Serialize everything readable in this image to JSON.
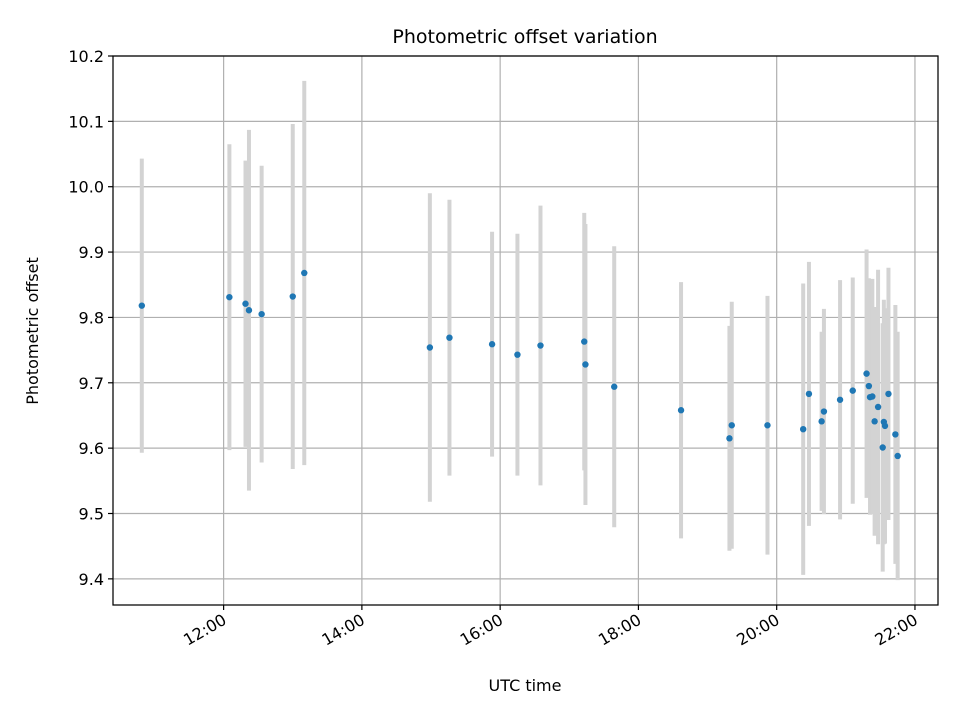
{
  "chart_data": {
    "type": "scatter",
    "title": "Photometric offset variation",
    "xlabel": "UTC time",
    "ylabel": "Photometric offset",
    "x_unit": "hour (decimal UTC)",
    "xlim": [
      "10:24",
      "22:20"
    ],
    "ylim": [
      9.36,
      10.2
    ],
    "x_ticks": [
      "12:00",
      "14:00",
      "16:00",
      "18:00",
      "20:00",
      "22:00"
    ],
    "y_ticks": [
      "9.4",
      "9.5",
      "9.6",
      "9.7",
      "9.8",
      "9.9",
      "10.0",
      "10.1",
      "10.2"
    ],
    "grid": true,
    "colors": {
      "point": "#1f77b4",
      "errorbar": "#d3d3d3",
      "grid": "#b0b0b0"
    },
    "series": [
      {
        "points": [
          {
            "x": "10:49",
            "y": 9.818,
            "yerr": 0.225
          },
          {
            "x": "12:05",
            "y": 9.831,
            "yerr": 0.234
          },
          {
            "x": "12:19",
            "y": 9.821,
            "yerr": 0.219
          },
          {
            "x": "12:22",
            "y": 9.811,
            "yerr": 0.276
          },
          {
            "x": "12:33",
            "y": 9.805,
            "yerr": 0.227
          },
          {
            "x": "13:00",
            "y": 9.832,
            "yerr": 0.264
          },
          {
            "x": "13:10",
            "y": 9.868,
            "yerr": 0.294
          },
          {
            "x": "14:59",
            "y": 9.754,
            "yerr": 0.236
          },
          {
            "x": "15:16",
            "y": 9.769,
            "yerr": 0.211
          },
          {
            "x": "15:53",
            "y": 9.759,
            "yerr": 0.172
          },
          {
            "x": "16:15",
            "y": 9.743,
            "yerr": 0.185
          },
          {
            "x": "16:35",
            "y": 9.757,
            "yerr": 0.214
          },
          {
            "x": "17:13",
            "y": 9.763,
            "yerr": 0.197
          },
          {
            "x": "17:14",
            "y": 9.728,
            "yerr": 0.215
          },
          {
            "x": "17:39",
            "y": 9.694,
            "yerr": 0.215
          },
          {
            "x": "18:37",
            "y": 9.658,
            "yerr": 0.196
          },
          {
            "x": "19:19",
            "y": 9.615,
            "yerr": 0.172
          },
          {
            "x": "19:21",
            "y": 9.635,
            "yerr": 0.189
          },
          {
            "x": "19:52",
            "y": 9.635,
            "yerr": 0.198
          },
          {
            "x": "20:23",
            "y": 9.629,
            "yerr": 0.223
          },
          {
            "x": "20:28",
            "y": 9.683,
            "yerr": 0.202
          },
          {
            "x": "20:39",
            "y": 9.641,
            "yerr": 0.137
          },
          {
            "x": "20:41",
            "y": 9.656,
            "yerr": 0.157
          },
          {
            "x": "20:55",
            "y": 9.674,
            "yerr": 0.183
          },
          {
            "x": "21:06",
            "y": 9.688,
            "yerr": 0.173
          },
          {
            "x": "21:18",
            "y": 9.714,
            "yerr": 0.19
          },
          {
            "x": "21:20",
            "y": 9.695,
            "yerr": 0.165
          },
          {
            "x": "21:21",
            "y": 9.678,
            "yerr": 0.18
          },
          {
            "x": "21:23",
            "y": 9.679,
            "yerr": 0.18
          },
          {
            "x": "21:25",
            "y": 9.641,
            "yerr": 0.175
          },
          {
            "x": "21:28",
            "y": 9.663,
            "yerr": 0.21
          },
          {
            "x": "21:32",
            "y": 9.601,
            "yerr": 0.19
          },
          {
            "x": "21:33",
            "y": 9.64,
            "yerr": 0.187
          },
          {
            "x": "21:34",
            "y": 9.634,
            "yerr": 0.18
          },
          {
            "x": "21:37",
            "y": 9.683,
            "yerr": 0.193
          },
          {
            "x": "21:43",
            "y": 9.621,
            "yerr": 0.198
          },
          {
            "x": "21:45",
            "y": 9.588,
            "yerr": 0.19
          }
        ]
      }
    ]
  }
}
